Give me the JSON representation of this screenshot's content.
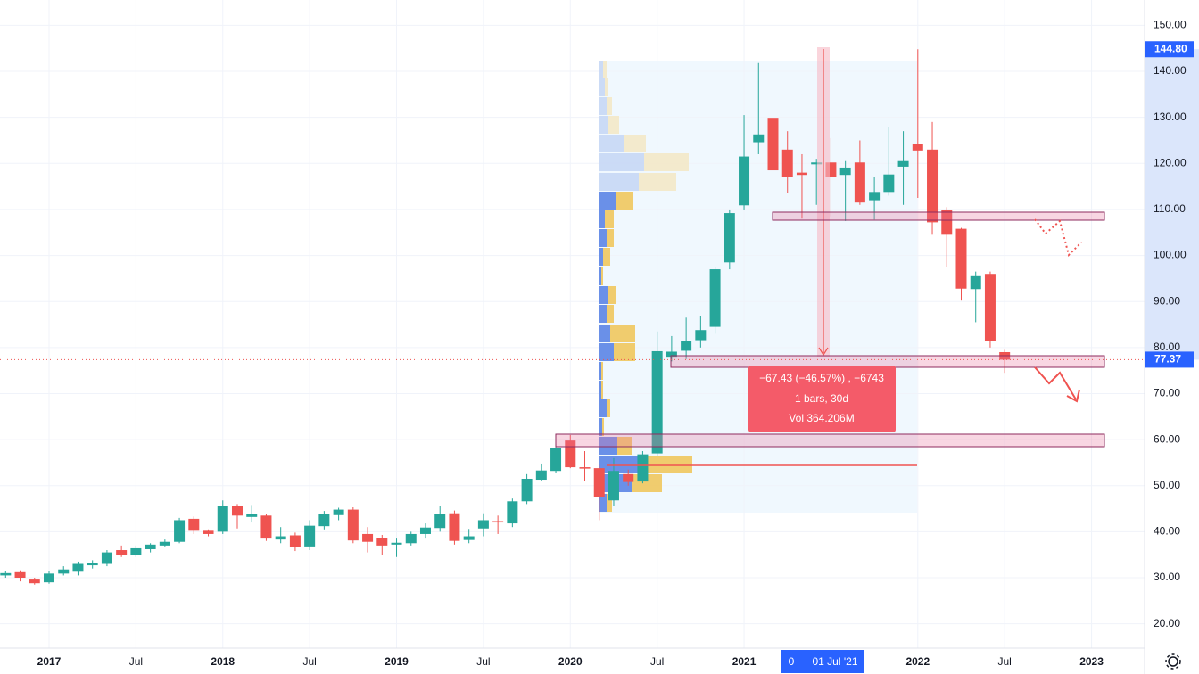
{
  "chart_data": {
    "type": "candlestick",
    "up_color": "#26a69a",
    "down_color": "#ef5350",
    "grid": true,
    "x": [
      "2016-10",
      "2016-11",
      "2016-12",
      "2017-01",
      "2017-02",
      "2017-03",
      "2017-04",
      "2017-05",
      "2017-06",
      "2017-07",
      "2017-08",
      "2017-09",
      "2017-10",
      "2017-11",
      "2017-12",
      "2018-01",
      "2018-02",
      "2018-03",
      "2018-04",
      "2018-05",
      "2018-06",
      "2018-07",
      "2018-08",
      "2018-09",
      "2018-10",
      "2018-11",
      "2018-12",
      "2019-01",
      "2019-02",
      "2019-03",
      "2019-04",
      "2019-05",
      "2019-06",
      "2019-07",
      "2019-08",
      "2019-09",
      "2019-10",
      "2019-11",
      "2019-12",
      "2020-01",
      "2020-02",
      "2020-03",
      "2020-04",
      "2020-05",
      "2020-06",
      "2020-07",
      "2020-08",
      "2020-09",
      "2020-10",
      "2020-11",
      "2020-12",
      "2021-01",
      "2021-02",
      "2021-03",
      "2021-04",
      "2021-05",
      "2021-06",
      "2021-07",
      "2021-08",
      "2021-09",
      "2021-10",
      "2021-11",
      "2021-12",
      "2022-01",
      "2022-02",
      "2022-03",
      "2022-04",
      "2022-05",
      "2022-06",
      "2022-07"
    ],
    "open": [
      30.5,
      31.2,
      29.6,
      29,
      30.9,
      31.3,
      32.7,
      33,
      36,
      35,
      36.2,
      37,
      37.8,
      42.8,
      40.2,
      40,
      45.5,
      43.2,
      43.5,
      38.3,
      39.2,
      36.8,
      41.2,
      43.6,
      44.8,
      39.5,
      38.7,
      37.2,
      37.5,
      39.5,
      40.8,
      44,
      38.2,
      40.7,
      42.3,
      41.8,
      46.6,
      51.3,
      53.2,
      59.8,
      54,
      53.8,
      46.8,
      52.5,
      50.9,
      57,
      78,
      79.3,
      81.6,
      84.5,
      98.5,
      110.9,
      124.6,
      129.9,
      123,
      118,
      119.8,
      120.2,
      117.5,
      120.2,
      112,
      113.8,
      119.3,
      124.3,
      123,
      109.8,
      105.8,
      92.7,
      96,
      79
    ],
    "high": [
      31.5,
      31.6,
      30,
      31.5,
      32.5,
      33.5,
      33.8,
      36,
      37,
      37,
      37.5,
      38.3,
      43,
      43.3,
      40.5,
      46.8,
      46,
      45.8,
      43.8,
      41,
      39.8,
      42.5,
      44.5,
      45.2,
      45.3,
      41,
      39.3,
      38.5,
      40,
      41.8,
      45.5,
      44.6,
      40.6,
      44,
      43.5,
      47.2,
      52.5,
      54.8,
      59,
      61,
      57.5,
      54.5,
      56,
      53.5,
      57.5,
      83.5,
      82.5,
      86.5,
      86.8,
      97.5,
      110,
      130.5,
      141.8,
      130.5,
      127,
      122,
      121,
      125.5,
      120.5,
      125,
      117,
      128,
      127,
      144.8,
      129,
      110.5,
      106,
      96.5,
      96.5,
      79.5
    ],
    "low": [
      30,
      29.2,
      28.5,
      28.7,
      30.5,
      30.5,
      32,
      32.5,
      34.5,
      34.5,
      35.5,
      36.8,
      37.5,
      39.5,
      39,
      39.5,
      40.7,
      42,
      38,
      37.5,
      35.8,
      36,
      40.5,
      42.5,
      37.5,
      35.5,
      35,
      34.5,
      37,
      38.5,
      40,
      37.2,
      37.5,
      39,
      39.5,
      41,
      46,
      51,
      52.8,
      53.8,
      51,
      42.5,
      45.5,
      50,
      50.5,
      56.5,
      77,
      77.5,
      80,
      83,
      97,
      110,
      122,
      114.5,
      113.5,
      108,
      111,
      108.5,
      107.5,
      111,
      107.8,
      113,
      111,
      112.5,
      104.5,
      97.5,
      90.2,
      85.5,
      80,
      74.5
    ],
    "close": [
      31,
      30,
      28.8,
      30.9,
      31.8,
      33,
      33.1,
      35.5,
      35,
      36.4,
      37.2,
      37.8,
      42.5,
      40.2,
      39.5,
      45.5,
      43.5,
      43.8,
      38.5,
      39,
      36.7,
      41.3,
      43.8,
      44.8,
      38.1,
      37.8,
      37,
      37.6,
      39.5,
      40.9,
      43.8,
      38,
      39,
      42.5,
      42,
      46.6,
      51.5,
      53.3,
      58.1,
      54,
      53.7,
      47.5,
      53.2,
      50.8,
      56.8,
      79.2,
      79.1,
      81.5,
      83.8,
      97,
      109.2,
      121.5,
      126.3,
      118.5,
      117,
      117.5,
      120.2,
      117,
      119.1,
      111.5,
      113.8,
      117.6,
      120.5,
      122.8,
      107.2,
      104.5,
      92.8,
      95.5,
      81.5,
      77.37
    ],
    "ylim": [
      14.7,
      155.5
    ],
    "yticks": [
      {
        "value": 20,
        "label": "20.00"
      },
      {
        "value": 30,
        "label": "30.00"
      },
      {
        "value": 40,
        "label": "40.00"
      },
      {
        "value": 50,
        "label": "50.00"
      },
      {
        "value": 60,
        "label": "60.00"
      },
      {
        "value": 70,
        "label": "70.00"
      },
      {
        "value": 80,
        "label": "80.00"
      },
      {
        "value": 90,
        "label": "90.00"
      },
      {
        "value": 100,
        "label": "100.00"
      },
      {
        "value": 110,
        "label": "110.00"
      },
      {
        "value": 120,
        "label": "120.00"
      },
      {
        "value": 130,
        "label": "130.00"
      },
      {
        "value": 140,
        "label": "140.00"
      },
      {
        "value": 150,
        "label": "150.00"
      }
    ],
    "xticks": [
      {
        "value": "2017-01",
        "label": "2017"
      },
      {
        "value": "2017-07",
        "label": "Jul"
      },
      {
        "value": "2018-01",
        "label": "2018"
      },
      {
        "value": "2018-07",
        "label": "Jul"
      },
      {
        "value": "2019-01",
        "label": "2019"
      },
      {
        "value": "2019-07",
        "label": "Jul"
      },
      {
        "value": "2020-01",
        "label": "2020"
      },
      {
        "value": "2020-07",
        "label": "Jul"
      },
      {
        "value": "2021-01",
        "label": "2021"
      },
      {
        "value": "2022-01",
        "label": "2022"
      },
      {
        "value": "2022-07",
        "label": "Jul"
      },
      {
        "value": "2023-01",
        "label": "2023"
      }
    ],
    "high_label": {
      "value": 144.8,
      "label": "144.80"
    },
    "last_price": 77.37,
    "tooltip": [
      "−67.43 (−46.57%) , −6743",
      "1 bars, 30d",
      "Vol 364.206M"
    ],
    "crosshair_prefix": "0",
    "crosshair_label": "01 Jul '21"
  }
}
